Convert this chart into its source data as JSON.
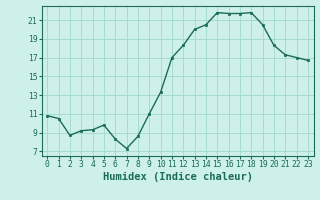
{
  "x": [
    0,
    1,
    2,
    3,
    4,
    5,
    6,
    7,
    8,
    9,
    10,
    11,
    12,
    13,
    14,
    15,
    16,
    17,
    18,
    19,
    20,
    21,
    22,
    23
  ],
  "y": [
    10.8,
    10.5,
    8.7,
    9.2,
    9.3,
    9.8,
    8.3,
    7.3,
    8.6,
    11.0,
    13.3,
    17.0,
    18.3,
    20.0,
    20.5,
    21.8,
    21.7,
    21.7,
    21.8,
    20.5,
    18.3,
    17.3,
    17.0,
    16.7
  ],
  "xlabel": "Humidex (Indice chaleur)",
  "line_color": "#1a6b5a",
  "marker": "s",
  "marker_size": 2.0,
  "bg_color": "#cef0ea",
  "grid_color": "#a0d8d0",
  "xlim": [
    -0.5,
    23.5
  ],
  "ylim": [
    6.5,
    22.5
  ],
  "yticks": [
    7,
    9,
    11,
    13,
    15,
    17,
    19,
    21
  ],
  "xticks": [
    0,
    1,
    2,
    3,
    4,
    5,
    6,
    7,
    8,
    9,
    10,
    11,
    12,
    13,
    14,
    15,
    16,
    17,
    18,
    19,
    20,
    21,
    22,
    23
  ],
  "tick_label_fontsize": 5.8,
  "xlabel_fontsize": 7.5,
  "linewidth": 1.0
}
